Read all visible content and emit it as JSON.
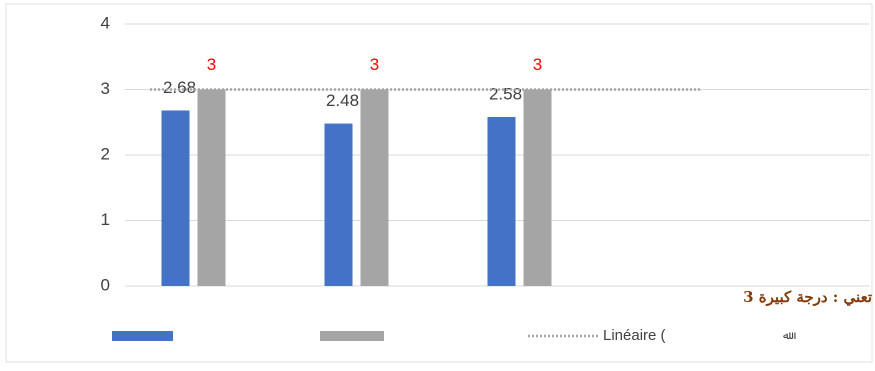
{
  "chart_data": {
    "type": "bar",
    "categories": [
      null,
      null,
      null
    ],
    "series": [
      {
        "color": "#4472c4",
        "label_color": "#404040",
        "values": [
          2.68,
          2.48,
          2.58
        ]
      },
      {
        "color": "#a5a5a5",
        "label_color": "#ff0000",
        "values": [
          3,
          3,
          3
        ]
      }
    ],
    "trendline": {
      "name": "Linéaire (",
      "value": 3,
      "color": "#a5a5a5"
    },
    "legend_symbol": "ﷲ",
    "annotation": "3 تعني : درجة كبيرة",
    "ylim": [
      0,
      4
    ],
    "yticks": [
      0,
      1,
      2,
      3,
      4
    ],
    "grid": true,
    "legend": "bottom"
  }
}
